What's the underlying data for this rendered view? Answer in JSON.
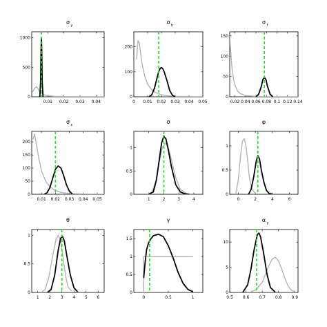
{
  "colors": {
    "posterior": "#000000",
    "prior": "#b4b4b4",
    "reference": "#22dd22"
  },
  "chart_data": [
    {
      "type": "line",
      "title": "σ",
      "subscript": "y",
      "xlim": [
        0,
        0.045
      ],
      "ylim": [
        0,
        1100
      ],
      "xticks": [
        0.01,
        0.02,
        0.03,
        0.04
      ],
      "xtick_labels": [
        "0.01",
        "0.02",
        "0.03",
        "0.04"
      ],
      "yticks": [
        0,
        500,
        1000
      ],
      "ytick_labels": [
        "0",
        "500",
        "1000"
      ],
      "reference_x": 0.006,
      "series": [
        {
          "role": "prior",
          "x": [
            0.0,
            0.002,
            0.003,
            0.004,
            0.005,
            0.006,
            0.008,
            0.01,
            0.014,
            0.02,
            0.03,
            0.045
          ],
          "y": [
            60,
            150,
            170,
            130,
            80,
            55,
            30,
            18,
            8,
            4,
            2,
            1
          ]
        },
        {
          "role": "posterior",
          "x": [
            0.005,
            0.0055,
            0.0058,
            0.006,
            0.0062,
            0.0065,
            0.007
          ],
          "y": [
            0,
            250,
            800,
            1000,
            800,
            250,
            0
          ]
        }
      ]
    },
    {
      "type": "line",
      "title": "σ",
      "subscript": "h",
      "xlim": [
        0,
        0.05
      ],
      "ylim": [
        0,
        260
      ],
      "xticks": [
        0,
        0.01,
        0.02,
        0.03,
        0.04,
        0.05
      ],
      "xtick_labels": [
        "0",
        "0.01",
        "0.02",
        "0.03",
        "0.04",
        "0.05"
      ],
      "yticks": [
        0,
        100,
        200
      ],
      "ytick_labels": [
        "0",
        "100",
        "200"
      ],
      "reference_x": 0.018,
      "series": [
        {
          "role": "prior",
          "x": [
            0.002,
            0.003,
            0.004,
            0.005,
            0.006,
            0.008,
            0.01,
            0.013,
            0.016,
            0.02,
            0.025,
            0.03,
            0.04,
            0.05
          ],
          "y": [
            150,
            225,
            215,
            170,
            130,
            80,
            50,
            28,
            16,
            8,
            4,
            2,
            1,
            0
          ]
        },
        {
          "role": "posterior",
          "x": [
            0.011,
            0.013,
            0.015,
            0.017,
            0.018,
            0.019,
            0.02,
            0.021,
            0.022,
            0.024,
            0.026,
            0.028,
            0.03
          ],
          "y": [
            0,
            8,
            35,
            80,
            100,
            113,
            117,
            112,
            100,
            65,
            25,
            6,
            0
          ]
        }
      ]
    },
    {
      "type": "line",
      "title": "σ",
      "subscript": "f",
      "xlim": [
        0.01,
        0.14
      ],
      "ylim": [
        0,
        160
      ],
      "xticks": [
        0.02,
        0.04,
        0.06,
        0.08,
        0.1,
        0.12,
        0.14
      ],
      "xtick_labels": [
        "0.02",
        "0.04",
        "0.06",
        "0.08",
        "0.1",
        "0.12",
        "0.14"
      ],
      "yticks": [
        0,
        50,
        100,
        150
      ],
      "ytick_labels": [
        "0",
        "50",
        "100",
        "150"
      ],
      "reference_x": 0.076,
      "series": [
        {
          "role": "prior",
          "x": [
            0.01,
            0.012,
            0.014,
            0.017,
            0.02,
            0.025,
            0.03,
            0.04,
            0.06,
            0.08,
            0.1,
            0.14
          ],
          "y": [
            150,
            110,
            75,
            45,
            28,
            14,
            8,
            3,
            1,
            0,
            0,
            0
          ]
        },
        {
          "role": "posterior",
          "x": [
            0.06,
            0.065,
            0.07,
            0.073,
            0.076,
            0.079,
            0.082,
            0.087,
            0.092
          ],
          "y": [
            0,
            6,
            25,
            42,
            48,
            42,
            25,
            6,
            0
          ]
        }
      ]
    },
    {
      "type": "line",
      "title": "σ",
      "subscript": "ε",
      "xlim": [
        0.003,
        0.055
      ],
      "ylim": [
        0,
        240
      ],
      "xticks": [
        0.01,
        0.02,
        0.03,
        0.04,
        0.05
      ],
      "xtick_labels": [
        "0.01",
        "0.02",
        "0.03",
        "0.04",
        "0.05"
      ],
      "yticks": [
        0,
        50,
        100,
        150,
        200
      ],
      "ytick_labels": [
        "0",
        "50",
        "100",
        "150",
        "200"
      ],
      "reference_x": 0.02,
      "series": [
        {
          "role": "prior",
          "x": [
            0.004,
            0.005,
            0.006,
            0.008,
            0.01,
            0.013,
            0.016,
            0.02,
            0.025,
            0.03,
            0.04,
            0.055
          ],
          "y": [
            210,
            230,
            200,
            140,
            90,
            50,
            28,
            14,
            6,
            3,
            1,
            0
          ]
        },
        {
          "role": "posterior",
          "x": [
            0.012,
            0.014,
            0.016,
            0.018,
            0.02,
            0.022,
            0.024,
            0.026,
            0.028,
            0.03,
            0.032
          ],
          "y": [
            0,
            6,
            25,
            60,
            95,
            108,
            100,
            70,
            35,
            12,
            2
          ]
        }
      ]
    },
    {
      "type": "line",
      "title": "σ",
      "subscript": "",
      "xlim": [
        0,
        4.6
      ],
      "ylim": [
        0,
        1.35
      ],
      "xticks": [
        1,
        2,
        3,
        4
      ],
      "xtick_labels": [
        "1",
        "2",
        "3",
        "4"
      ],
      "yticks": [
        0,
        0.5,
        1
      ],
      "ytick_labels": [
        "0",
        "0.5",
        "1"
      ],
      "reference_x": 2.0,
      "series": [
        {
          "role": "prior",
          "x": [
            0.9,
            1.2,
            1.5,
            1.7,
            1.9,
            2.1,
            2.3,
            2.5,
            2.8,
            3.1,
            3.5
          ],
          "y": [
            0,
            0.05,
            0.3,
            0.7,
            1.0,
            1.1,
            1.0,
            0.75,
            0.35,
            0.1,
            0.02
          ]
        },
        {
          "role": "posterior",
          "x": [
            1.0,
            1.3,
            1.5,
            1.7,
            1.85,
            2.0,
            2.15,
            2.3,
            2.5,
            2.8,
            3.1,
            3.4,
            3.7
          ],
          "y": [
            0,
            0.05,
            0.3,
            0.75,
            1.1,
            1.25,
            1.18,
            0.95,
            0.6,
            0.2,
            0.05,
            0.01,
            0
          ]
        }
      ]
    },
    {
      "type": "line",
      "title": "φ",
      "subscript": "",
      "xlim": [
        -1,
        7
      ],
      "ylim": [
        0,
        1.3
      ],
      "xticks": [
        0,
        2,
        4,
        6
      ],
      "xtick_labels": [
        "0",
        "2",
        "4",
        "6"
      ],
      "yticks": [
        0,
        0.5,
        1
      ],
      "ytick_labels": [
        "0",
        "0.5",
        "1"
      ],
      "reference_x": 2.3,
      "series": [
        {
          "role": "prior",
          "x": [
            -0.3,
            0.0,
            0.3,
            0.5,
            0.7,
            0.9,
            1.1,
            1.3,
            1.6,
            2.0
          ],
          "y": [
            0,
            0.3,
            0.85,
            1.1,
            1.15,
            1.0,
            0.7,
            0.35,
            0.1,
            0.02
          ]
        },
        {
          "role": "posterior",
          "x": [
            1.2,
            1.5,
            1.8,
            2.1,
            2.3,
            2.5,
            2.7,
            3.0,
            3.3,
            3.6,
            4.0
          ],
          "y": [
            0,
            0.1,
            0.35,
            0.68,
            0.8,
            0.72,
            0.5,
            0.25,
            0.08,
            0.02,
            0
          ]
        }
      ]
    },
    {
      "type": "line",
      "title": "θ",
      "subscript": "",
      "xlim": [
        0.5,
        6.5
      ],
      "ylim": [
        0,
        1.1
      ],
      "xticks": [
        1,
        2,
        3,
        4,
        5,
        6
      ],
      "xtick_labels": [
        "1",
        "2",
        "3",
        "4",
        "5",
        "6"
      ],
      "yticks": [
        0,
        0.5,
        1
      ],
      "ytick_labels": [
        "0",
        "0.5",
        "1"
      ],
      "reference_x": 3.0,
      "series": [
        {
          "role": "prior",
          "x": [
            1.3,
            1.6,
            1.9,
            2.2,
            2.5,
            2.7,
            2.9,
            3.1,
            3.3,
            3.5,
            3.8
          ],
          "y": [
            0,
            0.05,
            0.25,
            0.6,
            0.92,
            1.0,
            0.9,
            0.6,
            0.3,
            0.1,
            0.02
          ]
        },
        {
          "role": "posterior",
          "x": [
            1.8,
            2.1,
            2.4,
            2.7,
            2.9,
            3.05,
            3.2,
            3.4,
            3.7,
            4.0,
            4.3
          ],
          "y": [
            0,
            0.05,
            0.3,
            0.75,
            0.95,
            0.98,
            0.9,
            0.65,
            0.3,
            0.08,
            0.01
          ]
        }
      ]
    },
    {
      "type": "line",
      "title": "γ",
      "subscript": "",
      "xlim": [
        -0.2,
        1.2
      ],
      "ylim": [
        0,
        1.75
      ],
      "xticks": [
        0,
        0.5,
        1
      ],
      "xtick_labels": [
        "0",
        "0.5",
        "1"
      ],
      "yticks": [
        0,
        0.5,
        1,
        1.5
      ],
      "ytick_labels": [
        "0",
        "0.5",
        "1",
        "1.5"
      ],
      "reference_x": 0.12,
      "series": [
        {
          "role": "prior",
          "x": [
            0.0,
            0.0,
            1.0
          ],
          "y": [
            0,
            1.0,
            1.0
          ]
        },
        {
          "role": "posterior",
          "x": [
            0.0,
            0.03,
            0.06,
            0.1,
            0.15,
            0.2,
            0.3,
            0.4,
            0.5,
            0.6,
            0.7,
            0.8,
            0.9,
            1.0
          ],
          "y": [
            0.4,
            0.85,
            1.2,
            1.38,
            1.5,
            1.58,
            1.62,
            1.55,
            1.3,
            0.95,
            0.55,
            0.25,
            0.08,
            0.02
          ]
        }
      ]
    },
    {
      "type": "line",
      "title": "α",
      "subscript": "y",
      "xlim": [
        0.5,
        0.92
      ],
      "ylim": [
        0,
        12.5
      ],
      "xticks": [
        0.5,
        0.6,
        0.7,
        0.8,
        0.9
      ],
      "xtick_labels": [
        "0.5",
        "0.6",
        "0.7",
        "0.8",
        "0.9"
      ],
      "yticks": [
        0,
        5,
        10
      ],
      "ytick_labels": [
        "0",
        "5",
        "10"
      ],
      "reference_x": 0.665,
      "series": [
        {
          "role": "prior",
          "x": [
            0.62,
            0.66,
            0.7,
            0.73,
            0.76,
            0.78,
            0.8,
            0.82,
            0.84,
            0.86,
            0.88,
            0.9
          ],
          "y": [
            0,
            0.5,
            2.0,
            4.5,
            6.6,
            7.0,
            6.3,
            4.6,
            2.7,
            1.2,
            0.4,
            0.1
          ]
        },
        {
          "role": "posterior",
          "x": [
            0.58,
            0.61,
            0.63,
            0.65,
            0.67,
            0.68,
            0.69,
            0.71,
            0.73,
            0.75,
            0.78
          ],
          "y": [
            0,
            1.5,
            4.5,
            8.5,
            11.5,
            11.8,
            11.0,
            7.5,
            3.5,
            1.0,
            0.05
          ]
        }
      ]
    }
  ]
}
